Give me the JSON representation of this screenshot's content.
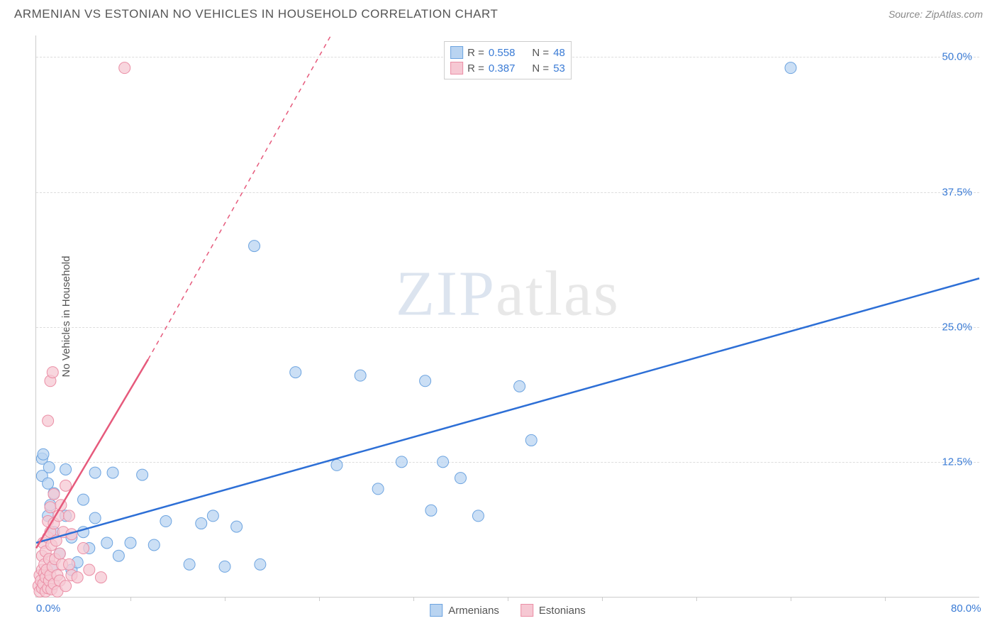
{
  "header": {
    "title": "ARMENIAN VS ESTONIAN NO VEHICLES IN HOUSEHOLD CORRELATION CHART",
    "source": "Source: ZipAtlas.com"
  },
  "watermark": {
    "part1": "ZIP",
    "part2": "atlas"
  },
  "chart": {
    "type": "scatter",
    "ylabel": "No Vehicles in Household",
    "xlim": [
      0,
      80
    ],
    "ylim": [
      0,
      52
    ],
    "x_ticks": [
      {
        "value": 0,
        "label": "0.0%"
      },
      {
        "value": 80,
        "label": "80.0%"
      }
    ],
    "x_minor_ticks": [
      8,
      16,
      24,
      32,
      40,
      48,
      56,
      64,
      72
    ],
    "y_ticks": [
      {
        "value": 12.5,
        "label": "12.5%"
      },
      {
        "value": 25.0,
        "label": "25.0%"
      },
      {
        "value": 37.5,
        "label": "37.5%"
      },
      {
        "value": 50.0,
        "label": "50.0%"
      }
    ],
    "background_color": "#ffffff",
    "grid_color": "#dddddd",
    "tick_label_color": "#3a7bd5",
    "axis_label_color": "#555555",
    "marker_radius": 8,
    "marker_stroke_width": 1,
    "series": [
      {
        "name": "Armenians",
        "fill": "#b9d4f1",
        "stroke": "#6da4e0",
        "line_color": "#2d6fd6",
        "line_width": 2.5,
        "trend": {
          "x1": 0,
          "y1": 5.0,
          "x2": 80,
          "y2": 29.5
        },
        "R": "0.558",
        "N": "48",
        "points": [
          [
            0.5,
            11.2
          ],
          [
            0.5,
            12.8
          ],
          [
            0.6,
            13.2
          ],
          [
            1.0,
            10.5
          ],
          [
            1.0,
            7.5
          ],
          [
            1.1,
            12.0
          ],
          [
            1.2,
            8.5
          ],
          [
            1.3,
            2.8
          ],
          [
            1.5,
            6.0
          ],
          [
            1.5,
            9.6
          ],
          [
            2.0,
            4.0
          ],
          [
            2.5,
            7.5
          ],
          [
            2.5,
            11.8
          ],
          [
            3.0,
            2.5
          ],
          [
            3.0,
            5.5
          ],
          [
            3.5,
            3.2
          ],
          [
            4.0,
            6.0
          ],
          [
            4.0,
            9.0
          ],
          [
            4.5,
            4.5
          ],
          [
            5.0,
            7.3
          ],
          [
            5.0,
            11.5
          ],
          [
            6.0,
            5.0
          ],
          [
            6.5,
            11.5
          ],
          [
            7.0,
            3.8
          ],
          [
            8.0,
            5.0
          ],
          [
            9.0,
            11.3
          ],
          [
            10.0,
            4.8
          ],
          [
            11.0,
            7.0
          ],
          [
            13.0,
            3.0
          ],
          [
            14.0,
            6.8
          ],
          [
            15.0,
            7.5
          ],
          [
            16.0,
            2.8
          ],
          [
            17.0,
            6.5
          ],
          [
            18.5,
            32.5
          ],
          [
            19.0,
            3.0
          ],
          [
            22.0,
            20.8
          ],
          [
            25.5,
            12.2
          ],
          [
            27.5,
            20.5
          ],
          [
            29.0,
            10.0
          ],
          [
            31.0,
            12.5
          ],
          [
            33.0,
            20.0
          ],
          [
            33.5,
            8.0
          ],
          [
            34.5,
            12.5
          ],
          [
            36.0,
            11.0
          ],
          [
            37.5,
            7.5
          ],
          [
            41.0,
            19.5
          ],
          [
            42.0,
            14.5
          ],
          [
            64.0,
            49.0
          ]
        ]
      },
      {
        "name": "Estonians",
        "fill": "#f6c8d3",
        "stroke": "#eb8fa6",
        "line_color": "#e65a7c",
        "line_width": 2.5,
        "trend": {
          "x1": 0,
          "y1": 4.5,
          "x2": 9.5,
          "y2": 22.0
        },
        "trend_dash": {
          "x1": 9.5,
          "y1": 22.0,
          "x2": 25,
          "y2": 52
        },
        "R": "0.387",
        "N": "53",
        "points": [
          [
            0.2,
            1.0
          ],
          [
            0.3,
            0.5
          ],
          [
            0.3,
            2.0
          ],
          [
            0.4,
            1.5
          ],
          [
            0.5,
            0.8
          ],
          [
            0.5,
            2.5
          ],
          [
            0.5,
            3.8
          ],
          [
            0.6,
            1.2
          ],
          [
            0.6,
            5.0
          ],
          [
            0.7,
            2.2
          ],
          [
            0.7,
            3.0
          ],
          [
            0.8,
            0.5
          ],
          [
            0.8,
            1.8
          ],
          [
            0.8,
            4.2
          ],
          [
            0.9,
            2.5
          ],
          [
            1.0,
            0.8
          ],
          [
            1.0,
            5.5
          ],
          [
            1.0,
            7.0
          ],
          [
            1.1,
            1.5
          ],
          [
            1.1,
            3.5
          ],
          [
            1.2,
            2.0
          ],
          [
            1.2,
            6.0
          ],
          [
            1.2,
            8.3
          ],
          [
            1.3,
            0.7
          ],
          [
            1.3,
            4.8
          ],
          [
            1.4,
            2.8
          ],
          [
            1.5,
            1.2
          ],
          [
            1.5,
            6.8
          ],
          [
            1.5,
            9.5
          ],
          [
            1.6,
            3.5
          ],
          [
            1.7,
            5.2
          ],
          [
            1.8,
            0.5
          ],
          [
            1.8,
            2.0
          ],
          [
            1.9,
            7.5
          ],
          [
            2.0,
            1.5
          ],
          [
            2.0,
            4.0
          ],
          [
            2.1,
            8.5
          ],
          [
            2.2,
            3.0
          ],
          [
            2.3,
            6.0
          ],
          [
            2.5,
            1.0
          ],
          [
            2.5,
            10.3
          ],
          [
            2.8,
            3.0
          ],
          [
            2.8,
            7.5
          ],
          [
            3.0,
            5.8
          ],
          [
            3.0,
            2.0
          ],
          [
            1.0,
            16.3
          ],
          [
            1.2,
            20.0
          ],
          [
            1.4,
            20.8
          ],
          [
            3.5,
            1.8
          ],
          [
            4.0,
            4.5
          ],
          [
            4.5,
            2.5
          ],
          [
            5.5,
            1.8
          ],
          [
            7.5,
            49.0
          ]
        ]
      }
    ],
    "legend_bottom": [
      {
        "label": "Armenians",
        "fill": "#b9d4f1",
        "stroke": "#6da4e0"
      },
      {
        "label": "Estonians",
        "fill": "#f6c8d3",
        "stroke": "#eb8fa6"
      }
    ],
    "legend_top": {
      "r_label": "R =",
      "n_label": "N =",
      "value_color": "#3a7bd5",
      "label_color": "#555555"
    }
  }
}
